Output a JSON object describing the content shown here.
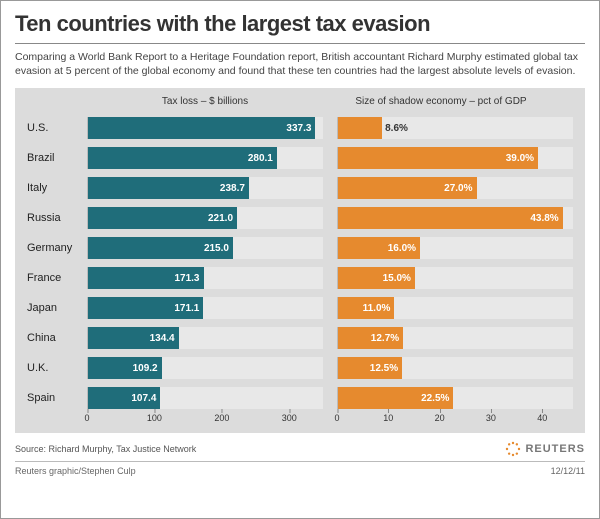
{
  "title": "Ten countries with the largest tax evasion",
  "intro": "Comparing a World Bank Report to a Heritage Foundation report, British accountant Richard Murphy estimated global tax evasion at 5 percent of the global economy and found that these ten countries had the largest absolute levels of evasion.",
  "chart": {
    "left_heading": "Tax loss – $ billions",
    "right_heading": "Size of shadow economy – pct of GDP",
    "left": {
      "max": 350,
      "ticks": [
        0,
        100,
        200,
        300
      ],
      "color": "#1f6d7a",
      "label_inside_color": "#ffffff",
      "label_outside_color": "#333333"
    },
    "right": {
      "max": 46,
      "ticks": [
        0,
        10,
        20,
        30,
        40
      ],
      "color": "#e68a2e",
      "label_inside_color": "#ffffff",
      "label_outside_color": "#333333"
    },
    "background": "#dcdcdc",
    "rows": [
      {
        "country": "U.S.",
        "loss": 337.3,
        "shadow": 8.6,
        "shadow_label": "8.6%"
      },
      {
        "country": "Brazil",
        "loss": 280.1,
        "shadow": 39.0,
        "shadow_label": "39.0%"
      },
      {
        "country": "Italy",
        "loss": 238.7,
        "shadow": 27.0,
        "shadow_label": "27.0%"
      },
      {
        "country": "Russia",
        "loss": 221.0,
        "shadow": 43.8,
        "shadow_label": "43.8%"
      },
      {
        "country": "Germany",
        "loss": 215.0,
        "shadow": 16.0,
        "shadow_label": "16.0%"
      },
      {
        "country": "France",
        "loss": 171.3,
        "shadow": 15.0,
        "shadow_label": "15.0%"
      },
      {
        "country": "Japan",
        "loss": 171.1,
        "shadow": 11.0,
        "shadow_label": "11.0%"
      },
      {
        "country": "China",
        "loss": 134.4,
        "shadow": 12.7,
        "shadow_label": "12.7%"
      },
      {
        "country": "U.K.",
        "loss": 109.2,
        "shadow": 12.5,
        "shadow_label": "12.5%"
      },
      {
        "country": "Spain",
        "loss": 107.4,
        "shadow": 22.5,
        "shadow_label": "22.5%"
      }
    ]
  },
  "source": "Source: Richard Murphy, Tax Justice Network",
  "brand": "REUTERS",
  "credit": "Reuters graphic/Stephen Culp",
  "date": "12/12/11"
}
